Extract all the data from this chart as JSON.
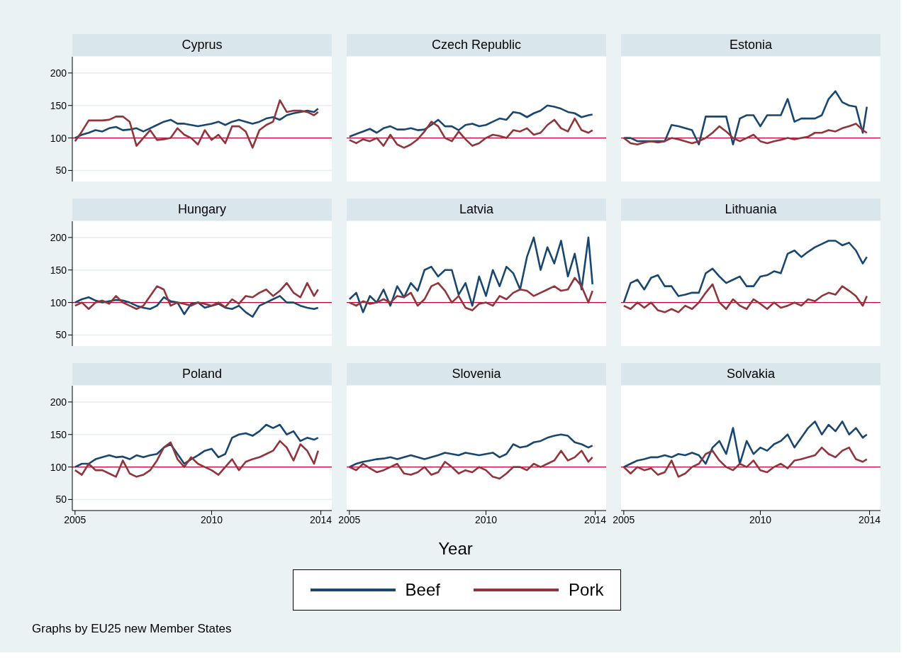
{
  "chart_data": [
    {
      "type": "line",
      "title": "Cyprus",
      "tick_labels": "y",
      "marker": "none",
      "grid": "y",
      "xlim": [
        2004.9,
        2014.4
      ],
      "ylim": [
        33,
        225
      ],
      "xticks": [
        2005,
        2010,
        2014
      ],
      "yticks": [
        50,
        100,
        150,
        200
      ],
      "ref_lines": [
        {
          "axis": "y",
          "value": 100,
          "color": "#c10534"
        }
      ],
      "x": [
        2005,
        2005.25,
        2005.5,
        2005.75,
        2006,
        2006.25,
        2006.5,
        2006.75,
        2007,
        2007.25,
        2007.5,
        2007.75,
        2008,
        2008.25,
        2008.5,
        2008.75,
        2009,
        2009.25,
        2009.5,
        2009.75,
        2010,
        2010.25,
        2010.5,
        2010.75,
        2011,
        2011.25,
        2011.5,
        2011.75,
        2012,
        2012.25,
        2012.5,
        2012.75,
        2013,
        2013.25,
        2013.5,
        2013.75,
        2013.9
      ],
      "series": [
        {
          "color": "#1a476f",
          "values": [
            100,
            105,
            108,
            112,
            110,
            115,
            117,
            112,
            113,
            115,
            110,
            115,
            120,
            125,
            128,
            122,
            122,
            120,
            118,
            120,
            122,
            125,
            120,
            125,
            128,
            125,
            122,
            125,
            130,
            132,
            128,
            135,
            138,
            140,
            142,
            140,
            145
          ]
        },
        {
          "color": "#90353b",
          "values": [
            95,
            110,
            127,
            127,
            127,
            128,
            133,
            133,
            125,
            88,
            100,
            112,
            97,
            98,
            100,
            115,
            105,
            100,
            90,
            112,
            97,
            105,
            92,
            118,
            118,
            110,
            85,
            112,
            120,
            125,
            158,
            140,
            142,
            142,
            140,
            135,
            140
          ]
        }
      ]
    },
    {
      "type": "line",
      "title": "Czech Republic",
      "tick_labels": false,
      "marker": "none",
      "grid": "y",
      "xlim": [
        2004.9,
        2014.4
      ],
      "ylim": [
        33,
        225
      ],
      "xticks": [
        2005,
        2010,
        2014
      ],
      "yticks": [
        50,
        100,
        150,
        200
      ],
      "ref_lines": [
        {
          "axis": "y",
          "value": 100,
          "color": "#c10534"
        }
      ],
      "x": [
        2005,
        2005.25,
        2005.5,
        2005.75,
        2006,
        2006.25,
        2006.5,
        2006.75,
        2007,
        2007.25,
        2007.5,
        2007.75,
        2008,
        2008.25,
        2008.5,
        2008.75,
        2009,
        2009.25,
        2009.5,
        2009.75,
        2010,
        2010.25,
        2010.5,
        2010.75,
        2011,
        2011.25,
        2011.5,
        2011.75,
        2012,
        2012.25,
        2012.5,
        2012.75,
        2013,
        2013.25,
        2013.5,
        2013.75,
        2013.9
      ],
      "series": [
        {
          "color": "#1a476f",
          "values": [
            102,
            106,
            110,
            114,
            108,
            115,
            118,
            113,
            113,
            115,
            112,
            113,
            120,
            128,
            118,
            118,
            112,
            120,
            122,
            118,
            120,
            125,
            130,
            128,
            140,
            138,
            132,
            138,
            142,
            150,
            148,
            145,
            140,
            138,
            132,
            135,
            136
          ]
        },
        {
          "color": "#90353b",
          "values": [
            97,
            92,
            98,
            95,
            100,
            88,
            105,
            90,
            85,
            90,
            98,
            110,
            125,
            118,
            100,
            95,
            110,
            98,
            88,
            92,
            100,
            105,
            103,
            100,
            112,
            110,
            115,
            105,
            108,
            120,
            128,
            115,
            110,
            130,
            112,
            108,
            112
          ]
        }
      ]
    },
    {
      "type": "line",
      "title": "Estonia",
      "tick_labels": false,
      "marker": "none",
      "grid": "y",
      "xlim": [
        2004.9,
        2014.4
      ],
      "ylim": [
        33,
        225
      ],
      "xticks": [
        2005,
        2010,
        2014
      ],
      "yticks": [
        50,
        100,
        150,
        200
      ],
      "ref_lines": [
        {
          "axis": "y",
          "value": 100,
          "color": "#c10534"
        }
      ],
      "x": [
        2005,
        2005.25,
        2005.5,
        2005.75,
        2006,
        2006.25,
        2006.5,
        2006.75,
        2007,
        2007.25,
        2007.5,
        2007.75,
        2008,
        2008.25,
        2008.5,
        2008.75,
        2009,
        2009.25,
        2009.5,
        2009.75,
        2010,
        2010.25,
        2010.5,
        2010.75,
        2011,
        2011.25,
        2011.5,
        2011.75,
        2012,
        2012.25,
        2012.5,
        2012.75,
        2013,
        2013.25,
        2013.5,
        2013.75,
        2013.9
      ],
      "series": [
        {
          "color": "#1a476f",
          "values": [
            100,
            100,
            95,
            95,
            95,
            95,
            95,
            120,
            118,
            115,
            112,
            90,
            133,
            133,
            133,
            133,
            90,
            130,
            135,
            135,
            118,
            135,
            135,
            135,
            160,
            125,
            130,
            130,
            130,
            135,
            160,
            172,
            155,
            150,
            148,
            108,
            148
          ]
        },
        {
          "color": "#90353b",
          "values": [
            100,
            92,
            90,
            93,
            95,
            93,
            95,
            100,
            98,
            95,
            92,
            95,
            100,
            108,
            118,
            110,
            100,
            95,
            100,
            105,
            95,
            92,
            95,
            97,
            100,
            98,
            100,
            102,
            108,
            108,
            112,
            110,
            115,
            118,
            122,
            112,
            108
          ]
        }
      ]
    },
    {
      "type": "line",
      "title": "Hungary",
      "tick_labels": "y",
      "marker": "none",
      "grid": "y",
      "xlim": [
        2004.9,
        2014.4
      ],
      "ylim": [
        33,
        225
      ],
      "xticks": [
        2005,
        2010,
        2014
      ],
      "yticks": [
        50,
        100,
        150,
        200
      ],
      "ref_lines": [
        {
          "axis": "y",
          "value": 100,
          "color": "#c10534"
        }
      ],
      "x": [
        2005,
        2005.25,
        2005.5,
        2005.75,
        2006,
        2006.25,
        2006.5,
        2006.75,
        2007,
        2007.25,
        2007.5,
        2007.75,
        2008,
        2008.25,
        2008.5,
        2008.75,
        2009,
        2009.25,
        2009.5,
        2009.75,
        2010,
        2010.25,
        2010.5,
        2010.75,
        2011,
        2011.25,
        2011.5,
        2011.75,
        2012,
        2012.25,
        2012.5,
        2012.75,
        2013,
        2013.25,
        2013.5,
        2013.75,
        2013.9
      ],
      "series": [
        {
          "color": "#1a476f",
          "values": [
            100,
            105,
            108,
            103,
            100,
            102,
            104,
            103,
            100,
            95,
            92,
            90,
            95,
            108,
            102,
            100,
            82,
            98,
            100,
            92,
            95,
            98,
            92,
            90,
            95,
            85,
            78,
            95,
            100,
            105,
            110,
            100,
            100,
            95,
            92,
            90,
            92
          ]
        },
        {
          "color": "#90353b",
          "values": [
            95,
            100,
            90,
            100,
            103,
            98,
            110,
            100,
            95,
            90,
            95,
            110,
            125,
            120,
            95,
            100,
            98,
            95,
            100,
            98,
            95,
            100,
            93,
            105,
            98,
            110,
            108,
            115,
            120,
            110,
            118,
            130,
            115,
            108,
            130,
            110,
            120
          ]
        }
      ]
    },
    {
      "type": "line",
      "title": "Latvia",
      "tick_labels": false,
      "marker": "none",
      "grid": "y",
      "xlim": [
        2004.9,
        2014.4
      ],
      "ylim": [
        33,
        225
      ],
      "xticks": [
        2005,
        2010,
        2014
      ],
      "yticks": [
        50,
        100,
        150,
        200
      ],
      "ref_lines": [
        {
          "axis": "y",
          "value": 100,
          "color": "#c10534"
        }
      ],
      "x": [
        2005,
        2005.25,
        2005.5,
        2005.75,
        2006,
        2006.25,
        2006.5,
        2006.75,
        2007,
        2007.25,
        2007.5,
        2007.75,
        2008,
        2008.25,
        2008.5,
        2008.75,
        2009,
        2009.25,
        2009.5,
        2009.75,
        2010,
        2010.25,
        2010.5,
        2010.75,
        2011,
        2011.25,
        2011.5,
        2011.75,
        2012,
        2012.25,
        2012.5,
        2012.75,
        2013,
        2013.25,
        2013.5,
        2013.75,
        2013.9
      ],
      "series": [
        {
          "color": "#1a476f",
          "values": [
            105,
            115,
            85,
            110,
            100,
            120,
            95,
            125,
            108,
            130,
            118,
            150,
            155,
            140,
            150,
            150,
            112,
            130,
            95,
            140,
            110,
            150,
            125,
            155,
            145,
            120,
            170,
            200,
            150,
            185,
            160,
            195,
            140,
            175,
            120,
            200,
            128
          ]
        },
        {
          "color": "#90353b",
          "values": [
            100,
            95,
            102,
            98,
            100,
            105,
            100,
            110,
            108,
            115,
            95,
            105,
            125,
            130,
            118,
            100,
            110,
            92,
            88,
            98,
            100,
            95,
            110,
            105,
            115,
            120,
            118,
            110,
            115,
            120,
            125,
            118,
            120,
            138,
            125,
            100,
            118
          ]
        }
      ]
    },
    {
      "type": "line",
      "title": "Lithuania",
      "tick_labels": false,
      "marker": "none",
      "grid": "y",
      "xlim": [
        2004.9,
        2014.4
      ],
      "ylim": [
        33,
        225
      ],
      "xticks": [
        2005,
        2010,
        2014
      ],
      "yticks": [
        50,
        100,
        150,
        200
      ],
      "ref_lines": [
        {
          "axis": "y",
          "value": 100,
          "color": "#c10534"
        }
      ],
      "x": [
        2005,
        2005.25,
        2005.5,
        2005.75,
        2006,
        2006.25,
        2006.5,
        2006.75,
        2007,
        2007.25,
        2007.5,
        2007.75,
        2008,
        2008.25,
        2008.5,
        2008.75,
        2009,
        2009.25,
        2009.5,
        2009.75,
        2010,
        2010.25,
        2010.5,
        2010.75,
        2011,
        2011.25,
        2011.5,
        2011.75,
        2012,
        2012.25,
        2012.5,
        2012.75,
        2013,
        2013.25,
        2013.5,
        2013.75,
        2013.9
      ],
      "series": [
        {
          "color": "#1a476f",
          "values": [
            100,
            130,
            135,
            120,
            138,
            142,
            125,
            125,
            110,
            112,
            115,
            115,
            145,
            152,
            140,
            130,
            135,
            140,
            125,
            125,
            140,
            142,
            148,
            145,
            175,
            180,
            170,
            178,
            185,
            190,
            195,
            195,
            188,
            192,
            180,
            160,
            170
          ]
        },
        {
          "color": "#90353b",
          "values": [
            95,
            90,
            100,
            92,
            100,
            88,
            85,
            90,
            85,
            95,
            90,
            100,
            115,
            128,
            100,
            90,
            105,
            95,
            90,
            105,
            98,
            90,
            100,
            92,
            95,
            100,
            95,
            105,
            102,
            110,
            115,
            112,
            125,
            118,
            110,
            95,
            110
          ]
        }
      ]
    },
    {
      "type": "line",
      "title": "Poland",
      "marker": "none",
      "grid": "y",
      "xlim": [
        2004.9,
        2014.4
      ],
      "ylim": [
        33,
        225
      ],
      "xticks": [
        2005,
        2010,
        2014
      ],
      "yticks": [
        50,
        100,
        150,
        200
      ],
      "ref_lines": [
        {
          "axis": "y",
          "value": 100,
          "color": "#c10534"
        }
      ],
      "annotations": [
        "Graphs by EU25 new Member States"
      ],
      "x": [
        2005,
        2005.25,
        2005.5,
        2005.75,
        2006,
        2006.25,
        2006.5,
        2006.75,
        2007,
        2007.25,
        2007.5,
        2007.75,
        2008,
        2008.25,
        2008.5,
        2008.75,
        2009,
        2009.25,
        2009.5,
        2009.75,
        2010,
        2010.25,
        2010.5,
        2010.75,
        2011,
        2011.25,
        2011.5,
        2011.75,
        2012,
        2012.25,
        2012.5,
        2012.75,
        2013,
        2013.25,
        2013.5,
        2013.75,
        2013.9
      ],
      "series": [
        {
          "color": "#1a476f",
          "values": [
            100,
            105,
            105,
            112,
            115,
            118,
            115,
            116,
            112,
            118,
            115,
            118,
            120,
            130,
            135,
            120,
            105,
            112,
            118,
            125,
            128,
            115,
            120,
            145,
            150,
            152,
            148,
            155,
            165,
            160,
            165,
            150,
            155,
            140,
            145,
            142,
            145
          ]
        },
        {
          "color": "#90353b",
          "values": [
            95,
            88,
            105,
            95,
            95,
            90,
            85,
            110,
            90,
            85,
            88,
            95,
            110,
            130,
            138,
            112,
            100,
            115,
            105,
            100,
            95,
            88,
            100,
            112,
            95,
            108,
            112,
            115,
            120,
            125,
            140,
            130,
            110,
            135,
            125,
            105,
            125
          ]
        }
      ]
    },
    {
      "type": "line",
      "title": "Slovenia",
      "tick_labels": "x",
      "marker": "none",
      "grid": "y",
      "legend": "bottom",
      "xlabel": "Year",
      "xlim": [
        2004.9,
        2014.4
      ],
      "ylim": [
        33,
        225
      ],
      "xticks": [
        2005,
        2010,
        2014
      ],
      "yticks": [
        50,
        100,
        150,
        200
      ],
      "ref_lines": [
        {
          "axis": "y",
          "value": 100,
          "color": "#c10534"
        }
      ],
      "x": [
        2005,
        2005.25,
        2005.5,
        2005.75,
        2006,
        2006.25,
        2006.5,
        2006.75,
        2007,
        2007.25,
        2007.5,
        2007.75,
        2008,
        2008.25,
        2008.5,
        2008.75,
        2009,
        2009.25,
        2009.5,
        2009.75,
        2010,
        2010.25,
        2010.5,
        2010.75,
        2011,
        2011.25,
        2011.5,
        2011.75,
        2012,
        2012.25,
        2012.5,
        2012.75,
        2013,
        2013.25,
        2013.5,
        2013.75,
        2013.9
      ],
      "series": [
        {
          "name": "Beef",
          "color": "#1a476f",
          "values": [
            100,
            105,
            108,
            110,
            112,
            113,
            115,
            112,
            115,
            118,
            115,
            112,
            115,
            118,
            122,
            120,
            118,
            122,
            120,
            118,
            120,
            122,
            115,
            120,
            135,
            130,
            132,
            138,
            140,
            145,
            148,
            150,
            148,
            138,
            135,
            130,
            133
          ]
        },
        {
          "name": "Pork",
          "color": "#90353b",
          "values": [
            100,
            95,
            105,
            98,
            92,
            95,
            100,
            105,
            90,
            88,
            92,
            100,
            88,
            92,
            108,
            100,
            90,
            95,
            92,
            100,
            95,
            85,
            82,
            90,
            100,
            100,
            95,
            105,
            100,
            105,
            110,
            125,
            110,
            115,
            125,
            108,
            115
          ]
        }
      ]
    },
    {
      "type": "line",
      "title": "Solvakia",
      "tick_labels": "x",
      "marker": "none",
      "grid": "y",
      "xlim": [
        2004.9,
        2014.4
      ],
      "ylim": [
        33,
        225
      ],
      "xticks": [
        2005,
        2010,
        2014
      ],
      "yticks": [
        50,
        100,
        150,
        200
      ],
      "ref_lines": [
        {
          "axis": "y",
          "value": 100,
          "color": "#c10534"
        }
      ],
      "x": [
        2005,
        2005.25,
        2005.5,
        2005.75,
        2006,
        2006.25,
        2006.5,
        2006.75,
        2007,
        2007.25,
        2007.5,
        2007.75,
        2008,
        2008.25,
        2008.5,
        2008.75,
        2009,
        2009.25,
        2009.5,
        2009.75,
        2010,
        2010.25,
        2010.5,
        2010.75,
        2011,
        2011.25,
        2011.5,
        2011.75,
        2012,
        2012.25,
        2012.5,
        2012.75,
        2013,
        2013.25,
        2013.5,
        2013.75,
        2013.9
      ],
      "series": [
        {
          "color": "#1a476f",
          "values": [
            100,
            105,
            110,
            112,
            115,
            115,
            118,
            115,
            120,
            118,
            122,
            118,
            105,
            130,
            140,
            120,
            160,
            105,
            140,
            120,
            130,
            125,
            135,
            140,
            150,
            130,
            145,
            160,
            170,
            150,
            165,
            155,
            170,
            150,
            160,
            145,
            150
          ]
        },
        {
          "color": "#90353b",
          "values": [
            100,
            90,
            100,
            95,
            98,
            88,
            92,
            110,
            85,
            90,
            100,
            105,
            120,
            125,
            110,
            100,
            95,
            105,
            100,
            110,
            95,
            92,
            100,
            105,
            98,
            110,
            112,
            115,
            118,
            130,
            120,
            115,
            125,
            130,
            112,
            108,
            112
          ]
        }
      ]
    }
  ]
}
